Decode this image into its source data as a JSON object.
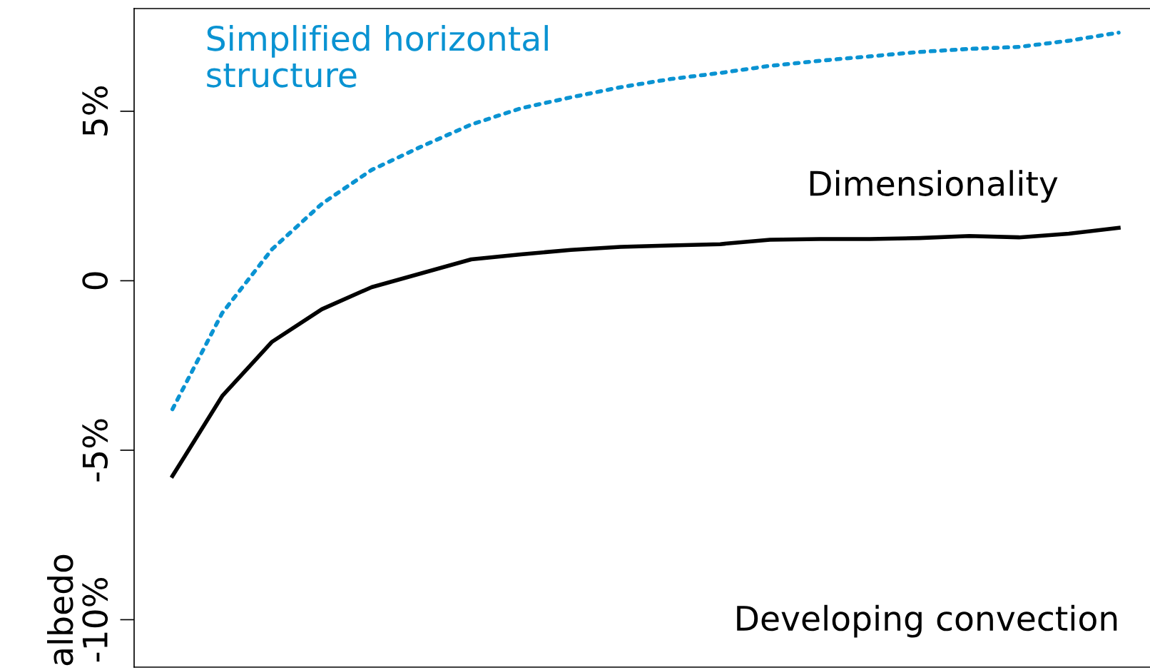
{
  "chart_data": {
    "type": "line",
    "ylabel": "albedo",
    "categories": [
      null,
      null,
      null,
      null,
      null,
      null,
      null,
      null,
      null,
      null,
      null,
      null,
      null,
      null,
      null,
      null,
      null,
      null,
      null,
      null
    ],
    "ylim": [
      -11.4,
      8.03
    ],
    "yticks": [
      {
        "value": -10,
        "label": "-10%"
      },
      {
        "value": -5,
        "label": "-5%"
      },
      {
        "value": 0,
        "label": "0"
      },
      {
        "value": 5,
        "label": "5%"
      }
    ],
    "series": [
      {
        "name": "Simplified horizontal\nstructure",
        "color": "#0a93d2",
        "line_style": "dotted",
        "values": [
          -3.79,
          -0.95,
          0.93,
          2.27,
          3.27,
          3.96,
          4.61,
          5.09,
          5.41,
          5.71,
          5.95,
          6.13,
          6.34,
          6.49,
          6.62,
          6.75,
          6.84,
          6.9,
          7.08,
          7.32
        ]
      },
      {
        "name": "Dimensionality",
        "color": "#000000",
        "line_style": "solid",
        "values": [
          -5.76,
          -3.4,
          -1.8,
          -0.84,
          -0.19,
          0.22,
          0.63,
          0.78,
          0.91,
          1.0,
          1.04,
          1.08,
          1.21,
          1.23,
          1.23,
          1.26,
          1.32,
          1.28,
          1.39,
          1.56
        ]
      }
    ],
    "annotations": [
      "Developing convection"
    ],
    "grid": false
  }
}
